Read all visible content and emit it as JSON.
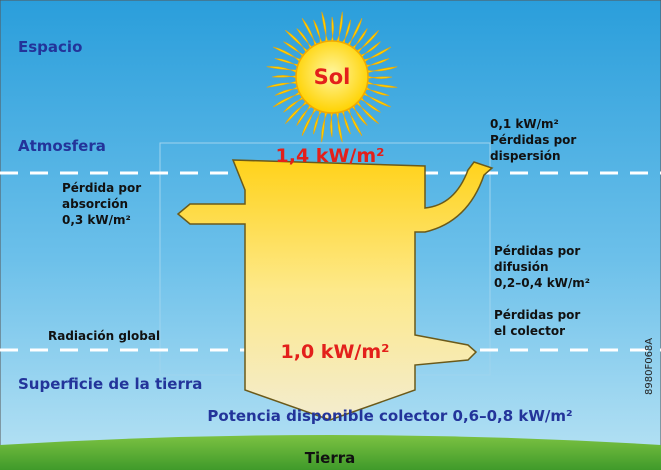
{
  "zones": {
    "space": "Espacio",
    "atmosphere": "Atmosfera",
    "surface": "Superficie de la tierra",
    "earth": "Tierra"
  },
  "sun": "Sol",
  "flow": {
    "input": "1,4 kW/m²",
    "output": "1,0 kW/m²",
    "available": "Potencia disponible colector 0,6–0,8 kW/m²"
  },
  "losses": {
    "dispersion": [
      "0,1 kW/m²",
      "Pérdidas por",
      "dispersión"
    ],
    "absorption": [
      "Pérdida por",
      "absorción",
      "0,3 kW/m²"
    ],
    "diffusion": [
      "Pérdidas por",
      "difusión",
      "0,2–0,4 kW/m²"
    ],
    "collector": [
      "Pérdidas por",
      "el colector"
    ],
    "global": "Radiación global"
  },
  "code": "8980F068A"
}
